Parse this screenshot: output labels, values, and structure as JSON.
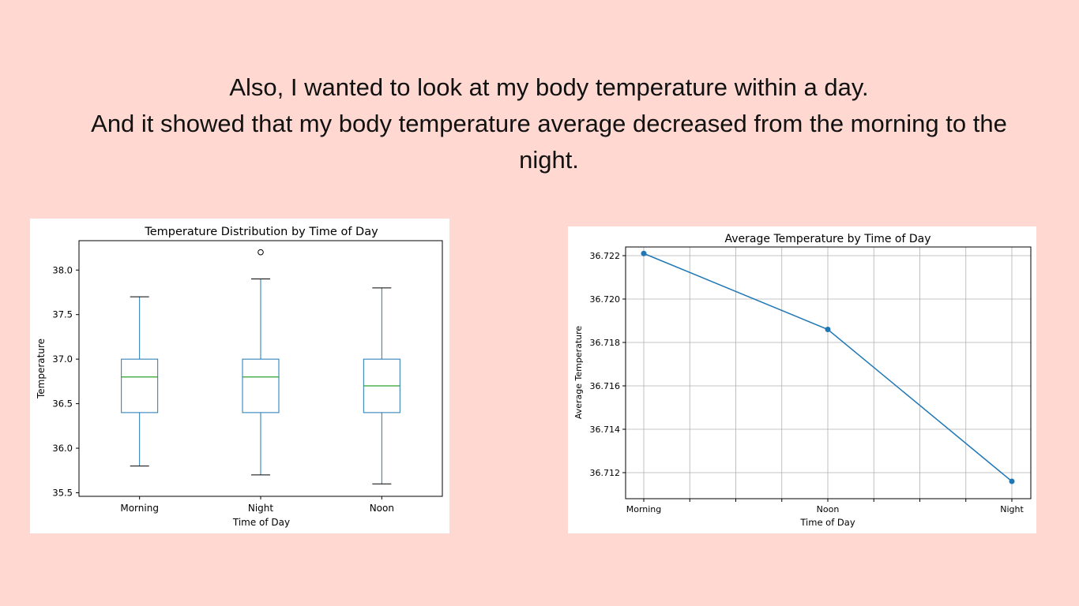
{
  "heading": {
    "line1": "Also, I wanted to look at my body temperature within a day.",
    "line2": "And it showed that my body temperature average decreased from the morning to the",
    "line3": "night."
  },
  "chart_data": [
    {
      "type": "box",
      "title": "Temperature Distribution by Time of Day",
      "xlabel": "Time of Day",
      "ylabel": "Temperature",
      "categories": [
        "Morning",
        "Night",
        "Noon"
      ],
      "boxes": [
        {
          "min": 35.8,
          "q1": 36.4,
          "median": 36.8,
          "q3": 37.0,
          "max": 37.7,
          "outliers": []
        },
        {
          "min": 35.7,
          "q1": 36.4,
          "median": 36.8,
          "q3": 37.0,
          "max": 37.9,
          "outliers": [
            38.2
          ]
        },
        {
          "min": 35.6,
          "q1": 36.4,
          "median": 36.7,
          "q3": 37.0,
          "max": 37.8,
          "outliers": []
        }
      ],
      "yticks": [
        "35.5",
        "36.0",
        "36.5",
        "37.0",
        "37.5",
        "38.0"
      ],
      "ylim": [
        35.46,
        38.33
      ],
      "grid": false,
      "colors": {
        "box": "#1f77b4",
        "median": "#2ca02c",
        "whisker_cap": "#000000",
        "outlier": "#000000"
      }
    },
    {
      "type": "line",
      "title": "Average Temperature by Time of Day",
      "xlabel": "Time of Day",
      "ylabel": "Average Temperature",
      "categories": [
        "Morning",
        "Noon",
        "Night"
      ],
      "values": [
        36.7221,
        36.7186,
        36.7116
      ],
      "yticks": [
        "36.712",
        "36.714",
        "36.716",
        "36.718",
        "36.720",
        "36.722"
      ],
      "ylim": [
        36.7108,
        36.7224
      ],
      "grid": true,
      "colors": {
        "line": "#1f77b4",
        "grid": "#b0b0b0"
      }
    }
  ]
}
